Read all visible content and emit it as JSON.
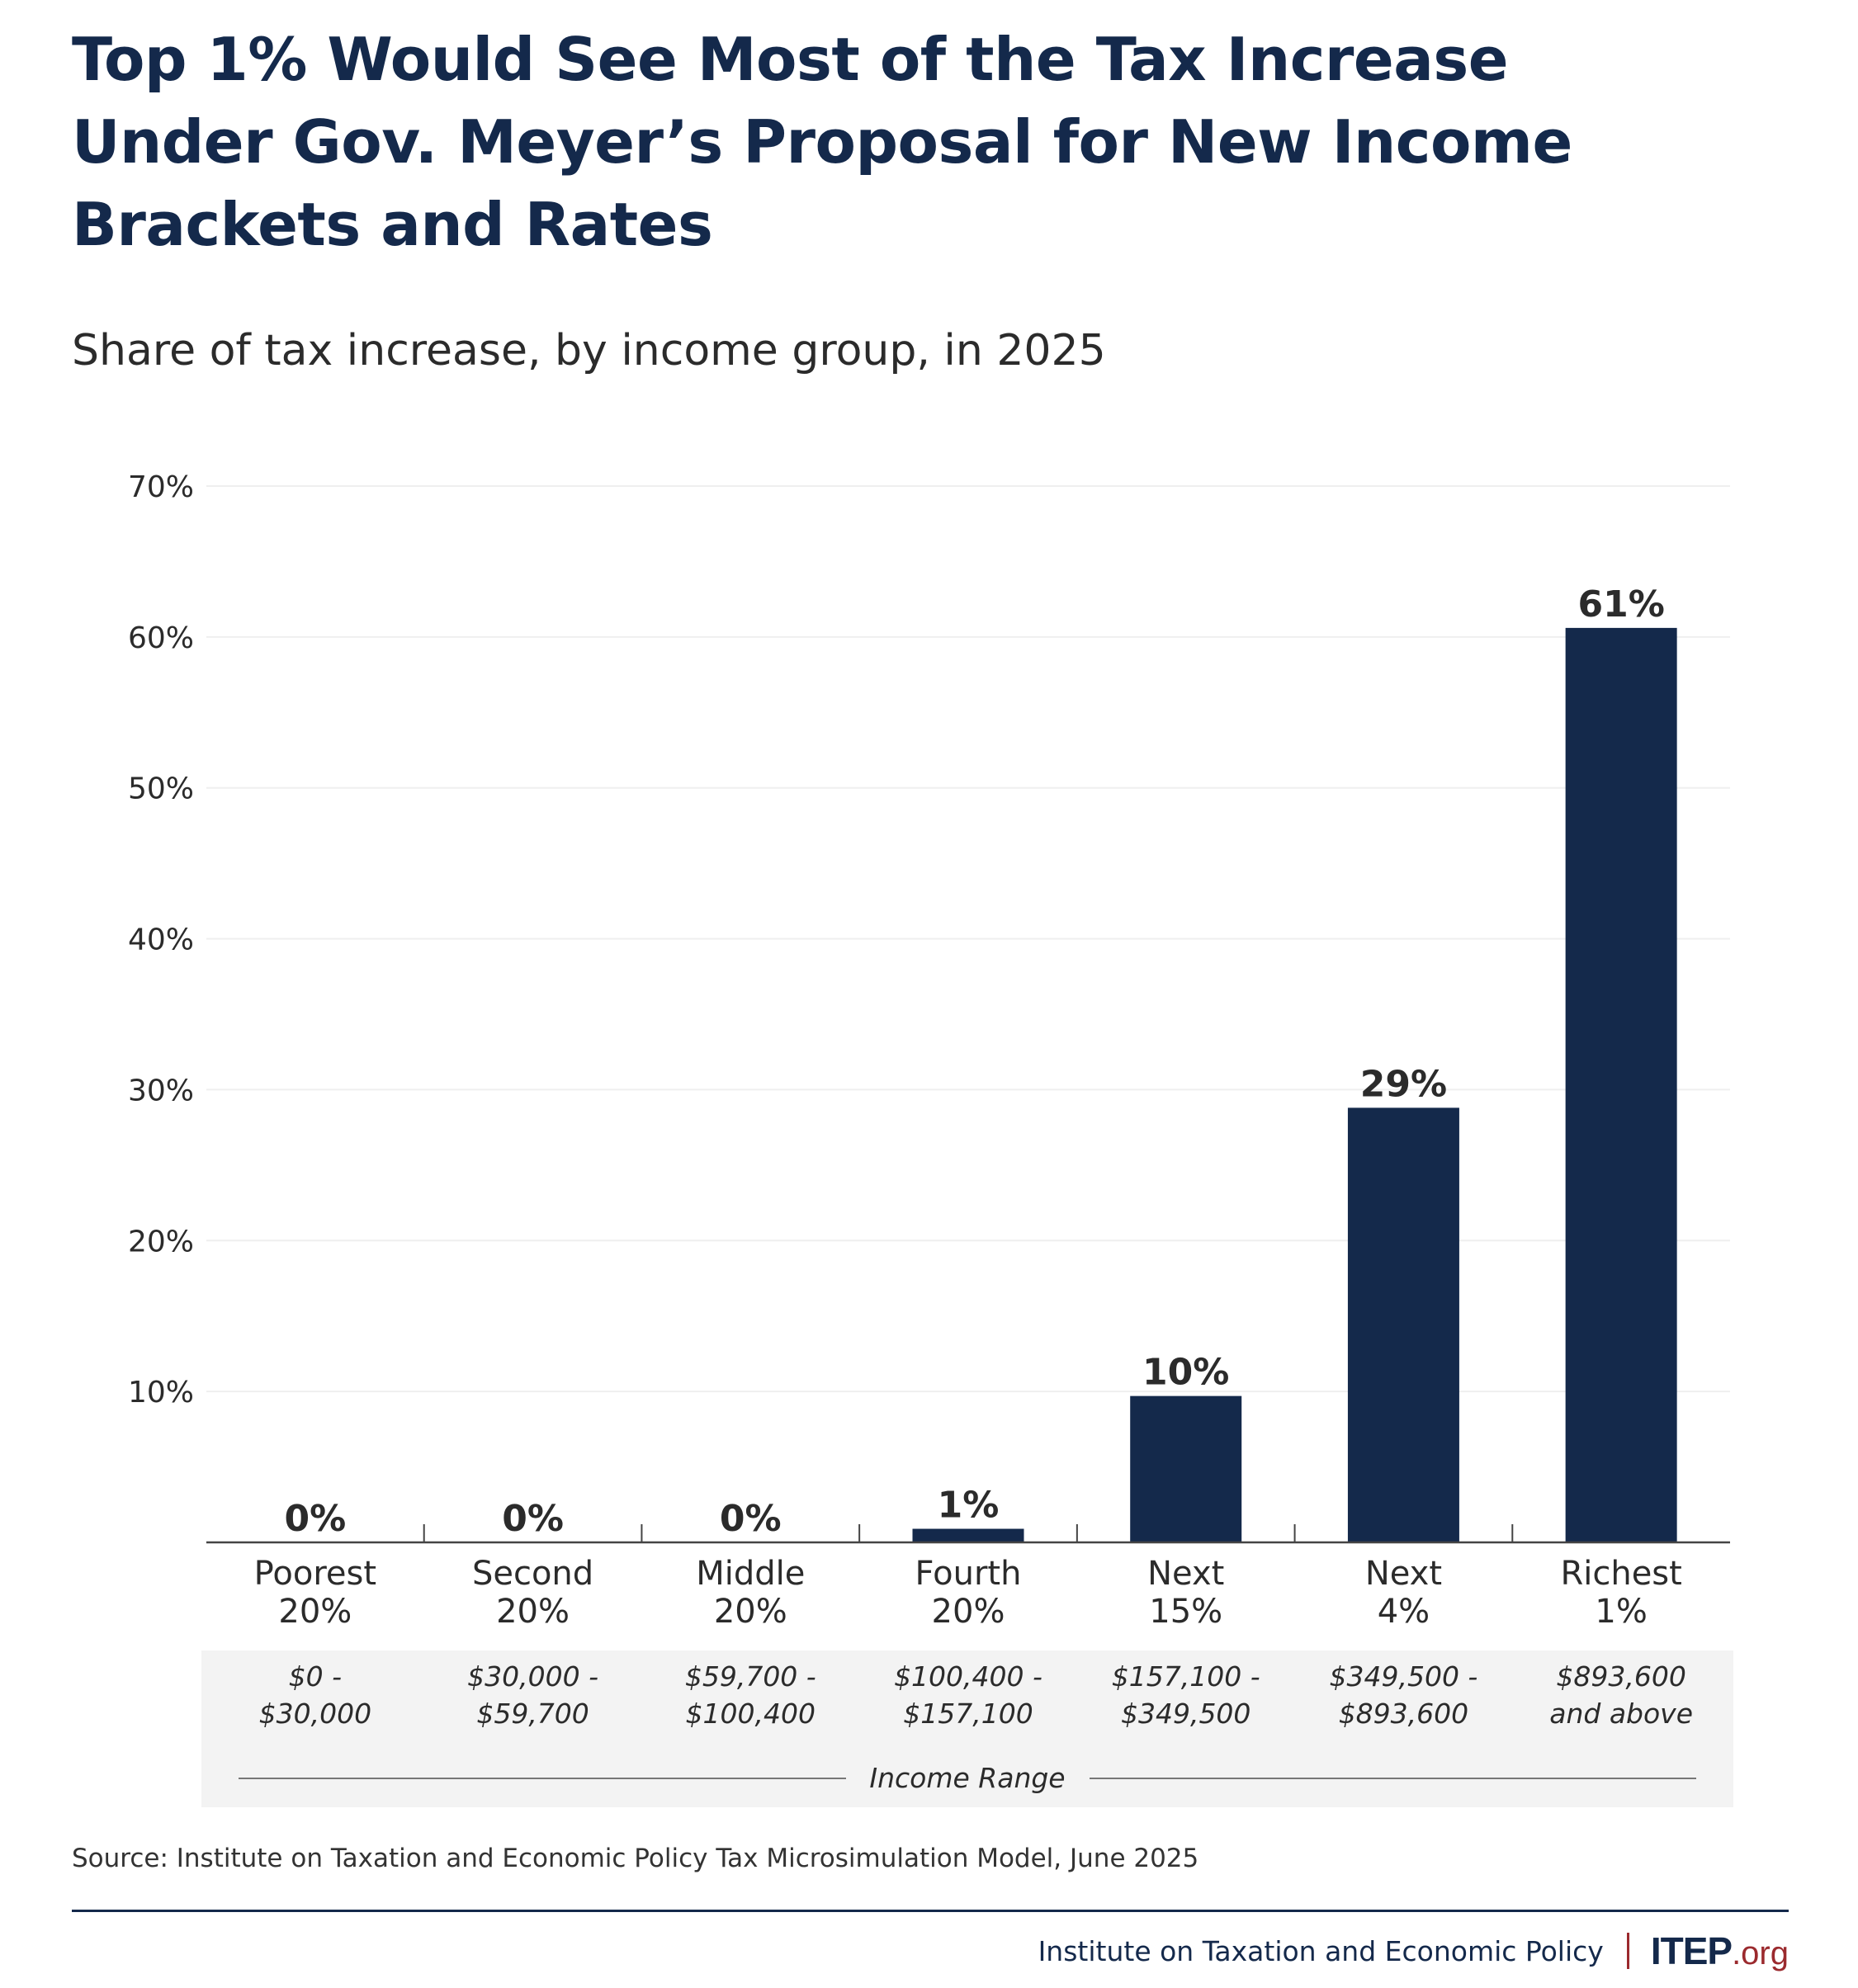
{
  "header": {
    "title_lines": [
      "Top 1% Would See Most of the Tax Increase",
      "Under Gov. Meyer’s Proposal for New Income",
      "Brackets and Rates"
    ],
    "subtitle": "Share of tax increase, by income group, in 2025"
  },
  "chart_data": {
    "type": "bar",
    "title": "Top 1% Would See Most of the Tax Increase Under Gov. Meyer’s Proposal for New Income Brackets and Rates",
    "subtitle": "Share of tax increase, by income group, in 2025",
    "xlabel": "Income Range",
    "ylabel": "",
    "ylim": [
      0,
      70
    ],
    "yticks": [
      10,
      20,
      30,
      40,
      50,
      60,
      70
    ],
    "ytick_labels": [
      "10%",
      "20%",
      "30%",
      "40%",
      "50%",
      "60%",
      "70%"
    ],
    "grid": true,
    "categories": [
      [
        "Poorest",
        "20%"
      ],
      [
        "Second",
        "20%"
      ],
      [
        "Middle",
        "20%"
      ],
      [
        "Fourth",
        "20%"
      ],
      [
        "Next",
        "15%"
      ],
      [
        "Next",
        "4%"
      ],
      [
        "Richest",
        "1%"
      ]
    ],
    "income_ranges": [
      [
        "$0 -",
        "$30,000"
      ],
      [
        "$30,000 -",
        "$59,700"
      ],
      [
        "$59,700 -",
        "$100,400"
      ],
      [
        "$100,400 -",
        "$157,100"
      ],
      [
        "$157,100 -",
        "$349,500"
      ],
      [
        "$349,500 -",
        "$893,600"
      ],
      [
        "$893,600",
        "and above"
      ]
    ],
    "values": [
      0,
      0,
      0,
      0.9,
      9.7,
      28.8,
      60.6
    ],
    "data_labels": [
      "0%",
      "0%",
      "0%",
      "1%",
      "10%",
      "29%",
      "61%"
    ],
    "bar_color": "#14294b"
  },
  "footer": {
    "source": "Source: Institute on Taxation and Economic Policy Tax Microsimulation Model, June 2025",
    "org_name": "Institute on Taxation and Economic Policy",
    "logo_main": "ITEP",
    "logo_suffix": ".org",
    "accent_color": "#9b2a2e",
    "brand_color": "#14294b"
  }
}
